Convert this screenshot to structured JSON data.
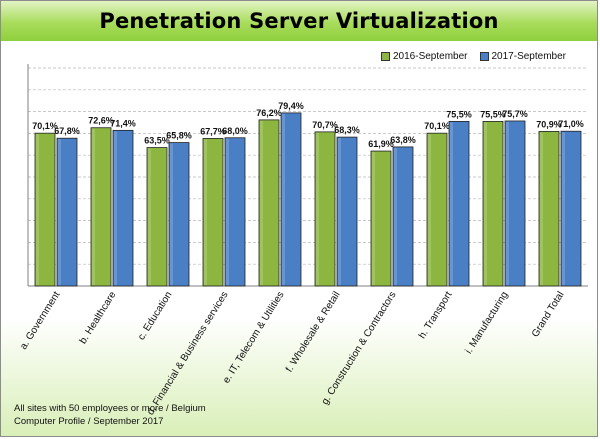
{
  "title": "Penetration Server Virtualization",
  "footer": {
    "line1": "All sites with 50 employees or more / Belgium",
    "line2": "Computer Profile / September 2017"
  },
  "colors": {
    "series1": "#8cb640",
    "series2": "#4a7fc6",
    "title_band": "#9ed64c"
  },
  "chart_data": {
    "type": "bar",
    "title": "Penetration Server Virtualization",
    "categories": [
      "a. Government",
      "b. Healthcare",
      "c. Education",
      "d. Financial & Business services",
      "e. IT, Telecom & Utilities",
      "f. Wholesale & Retail",
      "g. Construction & Contractors",
      "h. Transport",
      "i. Manufacturing",
      "Grand Total"
    ],
    "series": [
      {
        "name": "2016-September",
        "values": [
          70.1,
          72.6,
          63.5,
          67.7,
          76.2,
          70.7,
          61.9,
          70.1,
          75.5,
          70.9
        ],
        "labels": [
          "70,1%",
          "72,6%",
          "63,5%",
          "67,7%",
          "76,2%",
          "70,7%",
          "61,9%",
          "70,1%",
          "75,5%",
          "70,9%"
        ]
      },
      {
        "name": "2017-September",
        "values": [
          67.8,
          71.4,
          65.8,
          68.0,
          79.4,
          68.3,
          63.8,
          75.5,
          75.7,
          71.0
        ],
        "labels": [
          "67,8%",
          "71,4%",
          "65,8%",
          "68,0%",
          "79,4%",
          "68,3%",
          "63,8%",
          "75,5%",
          "75,7%",
          "71,0%"
        ]
      }
    ],
    "ylim": [
      0,
      100
    ],
    "grid": true,
    "legend": "top-right",
    "xlabel": "",
    "ylabel": ""
  }
}
